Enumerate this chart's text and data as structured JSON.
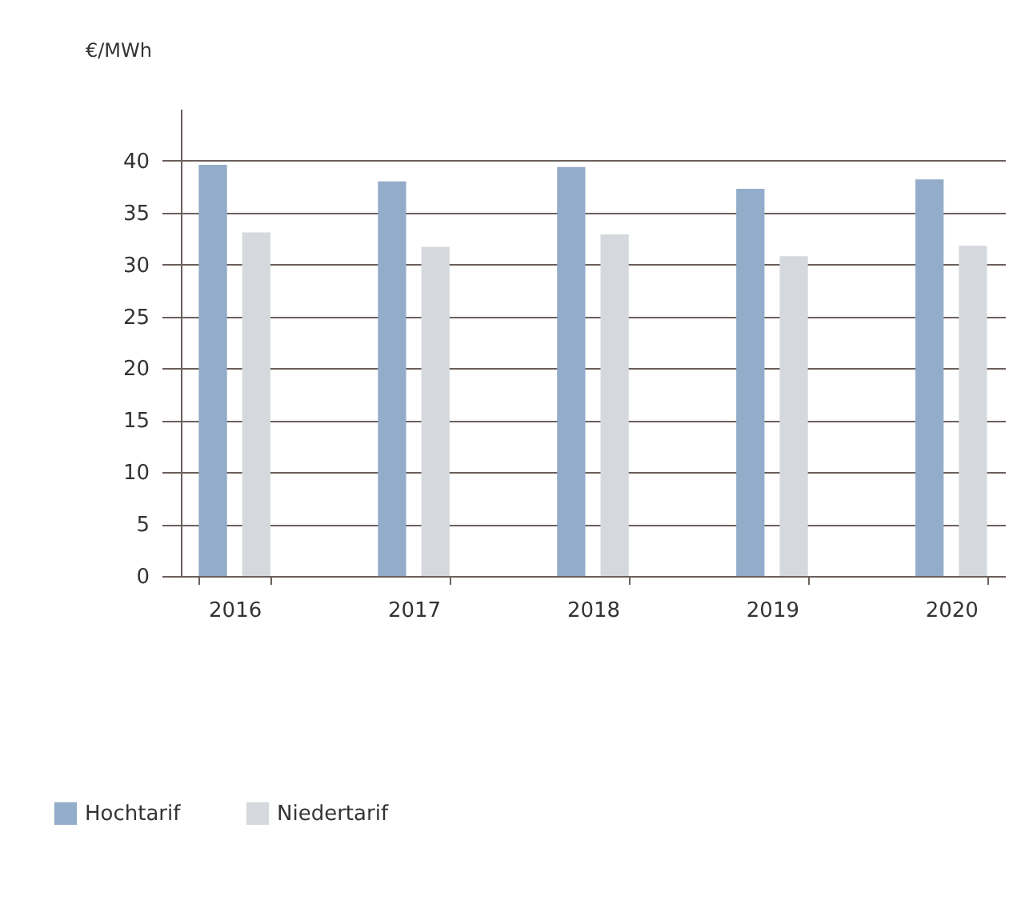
{
  "chart_data": {
    "type": "bar",
    "ylabel": "€/MWh",
    "categories": [
      "2016",
      "2017",
      "2018",
      "2019",
      "2020"
    ],
    "series": [
      {
        "name": "Hochtarif",
        "color": "#93acc9",
        "values": [
          39.6,
          38.0,
          39.4,
          37.3,
          38.2
        ]
      },
      {
        "name": "Niedertarif",
        "color": "#d5d9dd",
        "values": [
          33.1,
          31.7,
          32.9,
          30.8,
          31.8
        ]
      }
    ],
    "ylim": [
      0,
      45
    ],
    "yticks": [
      0,
      5,
      10,
      15,
      20,
      25,
      30,
      35,
      40
    ],
    "grid": "y",
    "legend": "bottom left"
  }
}
